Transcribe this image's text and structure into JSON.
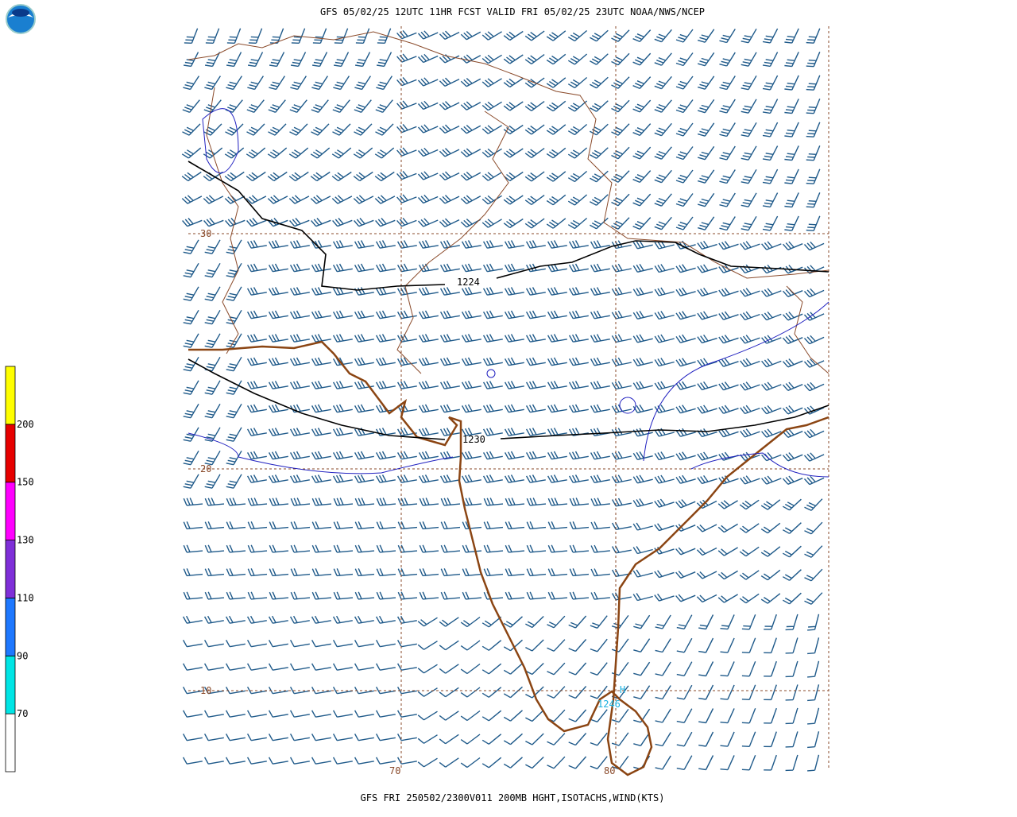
{
  "header": {
    "title": "GFS 05/02/25 12UTC 11HR FCST VALID FRI 05/02/25 23UTC NOAA/NWS/NCEP"
  },
  "footer": {
    "caption": "GFS FRI 250502/2300V011 200MB HGHT,ISOTACHS,WIND(KTS)"
  },
  "colorbar": {
    "bounds": [
      70,
      90,
      110,
      130,
      150,
      200
    ],
    "colors": [
      "#ffffff",
      "#00e5e5",
      "#1e78ff",
      "#7f2fd8",
      "#ff00ff",
      "#e60000",
      "#ffff00"
    ]
  },
  "map": {
    "lat_labels": [
      "30",
      "20",
      "10"
    ],
    "lon_labels": [
      "70",
      "80"
    ],
    "contour_labels": [
      "1224",
      "1230",
      "1246"
    ],
    "max_marker": "H"
  }
}
